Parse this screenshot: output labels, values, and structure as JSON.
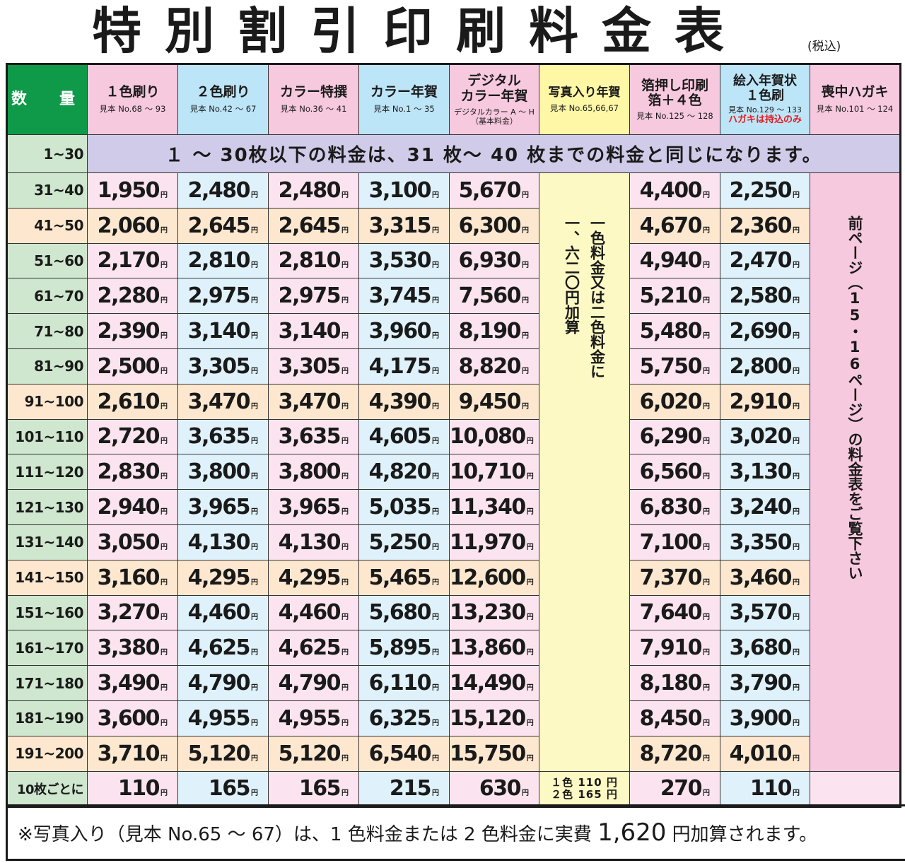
{
  "title": "特別割引印刷料金表",
  "tax_note": "(税込)",
  "header": {
    "qty": "数　量",
    "cols": [
      {
        "title": "１色刷り",
        "sub": "見本 No.68 ～ 93"
      },
      {
        "title": "２色刷り",
        "sub": "見本 No.42 ～ 67"
      },
      {
        "title": "カラー特撰",
        "sub": "見本 No.36 ～ 41"
      },
      {
        "title": "カラー年賀",
        "sub": "見本 No.1 ～ 35"
      },
      {
        "title1": "デジタル",
        "title2": "カラー年賀",
        "sub1": "デジタルカラー A ～ H",
        "sub2": "（基本料金）"
      },
      {
        "title": "写真入り年賀",
        "sub": "見本 No.65,66,67"
      },
      {
        "title1": "箔押し印刷",
        "title2": "箔＋４色",
        "sub": "見本 No.125 ～ 128"
      },
      {
        "title1": "絵入年賀状",
        "title2": "１色刷",
        "sub": "見本 No.129 ～ 133",
        "red": "ハガキは持込のみ"
      },
      {
        "title": "喪中ハガキ",
        "sub": "見本 No.101 ～ 124"
      }
    ]
  },
  "first_row": {
    "qty": "1~30",
    "notice": "１ ～ 30枚以下の料金は、31 枚～ 40 枚までの料金と同じになります。"
  },
  "unit": "円",
  "rows": [
    {
      "qty": "31~40",
      "v": [
        "1,950",
        "2,480",
        "2,480",
        "3,100",
        "5,670",
        "4,400",
        "2,250"
      ]
    },
    {
      "qty": "41~50",
      "v": [
        "2,060",
        "2,645",
        "2,645",
        "3,315",
        "6,300",
        "4,670",
        "2,360"
      ]
    },
    {
      "qty": "51~60",
      "v": [
        "2,170",
        "2,810",
        "2,810",
        "3,530",
        "6,930",
        "4,940",
        "2,470"
      ]
    },
    {
      "qty": "61~70",
      "v": [
        "2,280",
        "2,975",
        "2,975",
        "3,745",
        "7,560",
        "5,210",
        "2,580"
      ]
    },
    {
      "qty": "71~80",
      "v": [
        "2,390",
        "3,140",
        "3,140",
        "3,960",
        "8,190",
        "5,480",
        "2,690"
      ]
    },
    {
      "qty": "81~90",
      "v": [
        "2,500",
        "3,305",
        "3,305",
        "4,175",
        "8,820",
        "5,750",
        "2,800"
      ]
    },
    {
      "qty": "91~100",
      "v": [
        "2,610",
        "3,470",
        "3,470",
        "4,390",
        "9,450",
        "6,020",
        "2,910"
      ]
    },
    {
      "qty": "101~110",
      "v": [
        "2,720",
        "3,635",
        "3,635",
        "4,605",
        "10,080",
        "6,290",
        "3,020"
      ]
    },
    {
      "qty": "111~120",
      "v": [
        "2,830",
        "3,800",
        "3,800",
        "4,820",
        "10,710",
        "6,560",
        "3,130"
      ]
    },
    {
      "qty": "121~130",
      "v": [
        "2,940",
        "3,965",
        "3,965",
        "5,035",
        "11,340",
        "6,830",
        "3,240"
      ]
    },
    {
      "qty": "131~140",
      "v": [
        "3,050",
        "4,130",
        "4,130",
        "5,250",
        "11,970",
        "7,100",
        "3,350"
      ]
    },
    {
      "qty": "141~150",
      "v": [
        "3,160",
        "4,295",
        "4,295",
        "5,465",
        "12,600",
        "7,370",
        "3,460"
      ]
    },
    {
      "qty": "151~160",
      "v": [
        "3,270",
        "4,460",
        "4,460",
        "5,680",
        "13,230",
        "7,640",
        "3,570"
      ]
    },
    {
      "qty": "161~170",
      "v": [
        "3,380",
        "4,625",
        "4,625",
        "5,895",
        "13,860",
        "7,910",
        "3,680"
      ]
    },
    {
      "qty": "171~180",
      "v": [
        "3,490",
        "4,790",
        "4,790",
        "6,110",
        "14,490",
        "8,180",
        "3,790"
      ]
    },
    {
      "qty": "181~190",
      "v": [
        "3,600",
        "4,955",
        "4,955",
        "6,325",
        "15,120",
        "8,450",
        "3,900"
      ]
    },
    {
      "qty": "191~200",
      "v": [
        "3,710",
        "5,120",
        "5,120",
        "6,540",
        "15,750",
        "8,720",
        "4,010"
      ]
    }
  ],
  "photo_merged": {
    "line1": "一色料金又は二色料金に",
    "line2": "一、六二〇円加算"
  },
  "mochu_merged": "前ページ（15・16ページ）の料金表をご覧下さい",
  "per10": {
    "qty": "10枚ごとに",
    "v": [
      "110",
      "165",
      "165",
      "215",
      "630",
      "270",
      "110"
    ],
    "photo1": "１色 110 円",
    "photo2": "２色 165 円"
  },
  "footer": {
    "part1": "※写真入り（見本 No.65 ～ 67）は、1 色料金または 2 色料金に実費 ",
    "amount": "1,620",
    "part2": " 円加算されます。"
  }
}
